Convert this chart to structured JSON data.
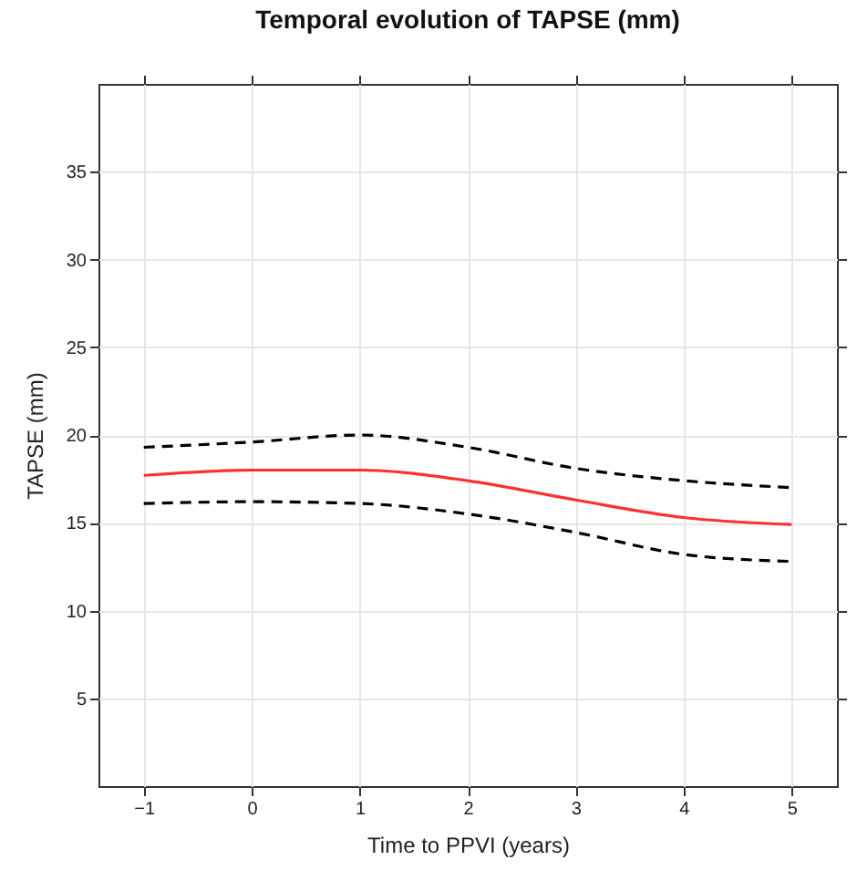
{
  "chart_data": {
    "type": "line",
    "title": "Temporal evolution of TAPSE (mm)",
    "xlabel": "Time to PPVI (years)",
    "ylabel": "TAPSE (mm)",
    "x": [
      -1,
      0,
      1,
      2,
      3,
      4,
      5
    ],
    "series": [
      {
        "color": "#ff3030",
        "line_style": "solid",
        "values": [
          17.7,
          18.0,
          18.0,
          17.4,
          16.3,
          15.3,
          14.9
        ]
      },
      {
        "color": "#000000",
        "line_style": "dashed",
        "values": [
          19.3,
          19.6,
          20.0,
          19.3,
          18.1,
          17.4,
          17.0
        ]
      },
      {
        "color": "#000000",
        "line_style": "dashed",
        "values": [
          16.1,
          16.2,
          16.1,
          15.5,
          14.45,
          13.2,
          12.8
        ]
      }
    ],
    "xlim": [
      -1.42,
      5.42
    ],
    "ylim": [
      0,
      40
    ],
    "xticks": [
      -1,
      0,
      1,
      2,
      3,
      4,
      5
    ],
    "yticks": [
      5,
      10,
      15,
      20,
      25,
      30,
      35
    ],
    "grid": true
  }
}
